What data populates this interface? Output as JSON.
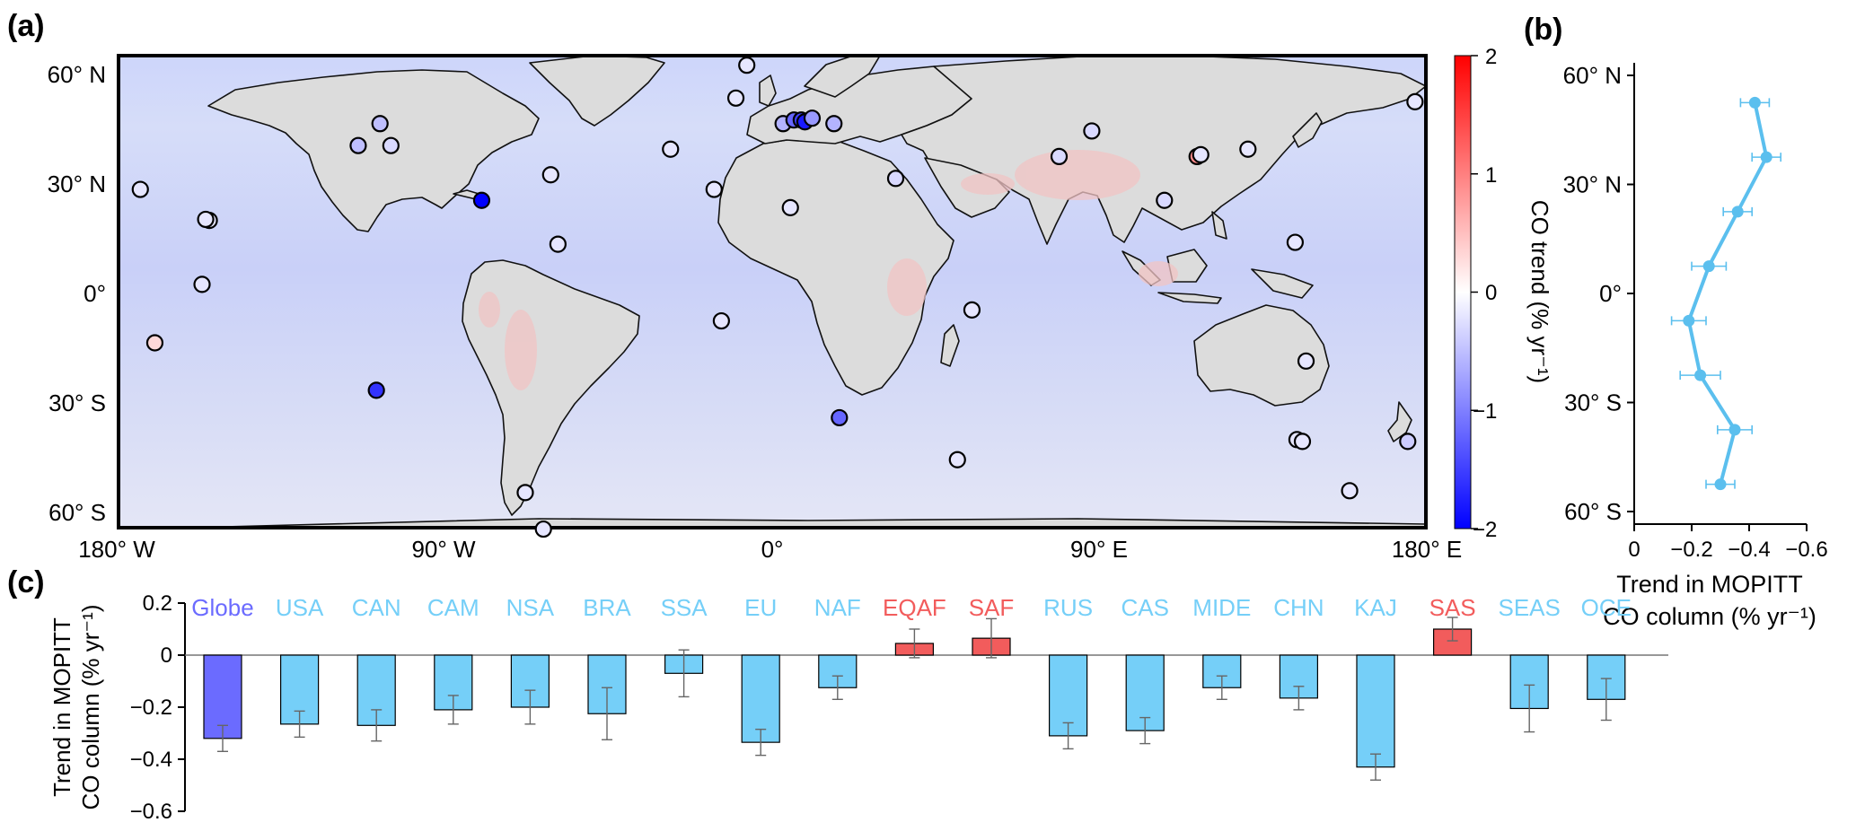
{
  "panels": {
    "a": "(a)",
    "b": "(b)",
    "c": "(c)"
  },
  "colors": {
    "blue": "#0000ff",
    "red": "#ff0000",
    "light_blue": "#75cff8",
    "globe_blue": "#6b6bff",
    "bar_red": "#f25c5c",
    "profile": "#5bbfee",
    "map_bg": "#d4dcf8",
    "land_gray": "#d8d8d8"
  },
  "chart_data": [
    {
      "type": "heatmap",
      "panel": "(a)",
      "x_ticks": [
        "180° W",
        "90° W",
        "0°",
        "90° E",
        "180° E"
      ],
      "y_ticks": [
        "60° N",
        "30° N",
        "0°",
        "30° S",
        "60° S"
      ],
      "colorbar": {
        "label": "CO trend (% yr⁻¹)",
        "ticks": [
          "2",
          "1",
          "0",
          "−1",
          "−2"
        ],
        "range": [
          -2,
          2
        ]
      },
      "stations": [
        {
          "lon": -174,
          "lat": 28,
          "trend": -0.2
        },
        {
          "lon": -155,
          "lat": 19.5,
          "trend": -0.2
        },
        {
          "lon": -156,
          "lat": 19.8,
          "trend": -0.2
        },
        {
          "lon": -157,
          "lat": 2,
          "trend": -0.2
        },
        {
          "lon": -170,
          "lat": -14,
          "trend": 0.3
        },
        {
          "lon": -109,
          "lat": -27,
          "trend": -1.6
        },
        {
          "lon": -114,
          "lat": 40,
          "trend": -0.5
        },
        {
          "lon": -108,
          "lat": 46,
          "trend": -0.5
        },
        {
          "lon": -105,
          "lat": 40,
          "trend": -0.3
        },
        {
          "lon": -80,
          "lat": 25,
          "trend": -2.0
        },
        {
          "lon": -61,
          "lat": 32,
          "trend": -0.2
        },
        {
          "lon": -59,
          "lat": 13,
          "trend": -0.2
        },
        {
          "lon": -68,
          "lat": -55,
          "trend": -0.2
        },
        {
          "lon": -63,
          "lat": -65,
          "trend": -0.2
        },
        {
          "lon": -28,
          "lat": 39,
          "trend": -0.2
        },
        {
          "lon": -16,
          "lat": 28,
          "trend": -0.2
        },
        {
          "lon": -10,
          "lat": 53,
          "trend": -0.2
        },
        {
          "lon": -7,
          "lat": 62,
          "trend": -0.2
        },
        {
          "lon": -14,
          "lat": -8,
          "trend": -0.2
        },
        {
          "lon": 5,
          "lat": 23,
          "trend": -0.2
        },
        {
          "lon": 3,
          "lat": 46,
          "trend": -0.6
        },
        {
          "lon": 6,
          "lat": 47,
          "trend": -1.2
        },
        {
          "lon": 8,
          "lat": 47,
          "trend": -1.5
        },
        {
          "lon": 9,
          "lat": 46.5,
          "trend": -1.8
        },
        {
          "lon": 11,
          "lat": 47.5,
          "trend": -0.8
        },
        {
          "lon": 17,
          "lat": 46,
          "trend": -0.6
        },
        {
          "lon": 18.5,
          "lat": -34.5,
          "trend": -1.2
        },
        {
          "lon": 34,
          "lat": 31,
          "trend": -0.3
        },
        {
          "lon": 55,
          "lat": -5,
          "trend": -0.2
        },
        {
          "lon": 51,
          "lat": -46,
          "trend": -0.2
        },
        {
          "lon": 79,
          "lat": 37,
          "trend": -0.3
        },
        {
          "lon": 88,
          "lat": 44,
          "trend": -0.3
        },
        {
          "lon": 108,
          "lat": 25,
          "trend": -0.3
        },
        {
          "lon": 117,
          "lat": 37,
          "trend": 0.9
        },
        {
          "lon": 118,
          "lat": 37.5,
          "trend": -0.2
        },
        {
          "lon": 131,
          "lat": 39,
          "trend": -0.2
        },
        {
          "lon": 144,
          "lat": 13.5,
          "trend": -0.2
        },
        {
          "lon": 147,
          "lat": -19,
          "trend": -0.2
        },
        {
          "lon": 144.5,
          "lat": -40.5,
          "trend": -0.2
        },
        {
          "lon": 146,
          "lat": -41,
          "trend": -0.2
        },
        {
          "lon": 175,
          "lat": -41,
          "trend": -0.4
        },
        {
          "lon": 159,
          "lat": -54.5,
          "trend": -0.2
        },
        {
          "lon": 177,
          "lat": 52,
          "trend": -0.2
        }
      ]
    },
    {
      "type": "line",
      "panel": "(b)",
      "xlabel": "Trend in MOPITT CO column (% yr⁻¹)",
      "xlabel_lines": [
        "Trend in MOPITT",
        "CO column (% yr⁻¹)"
      ],
      "xlim": [
        0,
        -0.6
      ],
      "ylim": [
        -66,
        66
      ],
      "x_ticks": [
        "0",
        "−0.2",
        "−0.4",
        "−0.6"
      ],
      "y_ticks": [
        "60° N",
        "30° N",
        "0°",
        "30° S",
        "60° S"
      ],
      "points": [
        {
          "lat": 52.5,
          "trend": -0.42,
          "err": 0.05
        },
        {
          "lat": 37.5,
          "trend": -0.46,
          "err": 0.05
        },
        {
          "lat": 22.5,
          "trend": -0.36,
          "err": 0.05
        },
        {
          "lat": 7.5,
          "trend": -0.26,
          "err": 0.06
        },
        {
          "lat": -7.5,
          "trend": -0.19,
          "err": 0.06
        },
        {
          "lat": -22.5,
          "trend": -0.23,
          "err": 0.07
        },
        {
          "lat": -37.5,
          "trend": -0.35,
          "err": 0.06
        },
        {
          "lat": -52.5,
          "trend": -0.3,
          "err": 0.05
        }
      ]
    },
    {
      "type": "bar",
      "panel": "(c)",
      "ylabel": "Trend in MOPITT CO column (% yr⁻¹)",
      "ylabel_lines": [
        "Trend in MOPITT",
        "CO column (% yr⁻¹)"
      ],
      "ylim": [
        -0.6,
        0.2
      ],
      "y_ticks": [
        "0.2",
        "0",
        "−0.2",
        "−0.4",
        "−0.6"
      ],
      "categories": [
        "Globe",
        "USA",
        "CAN",
        "CAM",
        "NSA",
        "BRA",
        "SSA",
        "EU",
        "NAF",
        "EQAF",
        "SAF",
        "RUS",
        "CAS",
        "MIDE",
        "CHN",
        "KAJ",
        "SAS",
        "SEAS",
        "OCE"
      ],
      "values": [
        -0.32,
        -0.265,
        -0.27,
        -0.21,
        -0.2,
        -0.225,
        -0.07,
        -0.335,
        -0.125,
        0.045,
        0.065,
        -0.31,
        -0.29,
        -0.125,
        -0.165,
        -0.43,
        0.1,
        -0.205,
        -0.17
      ],
      "errors": [
        0.05,
        0.05,
        0.06,
        0.055,
        0.065,
        0.1,
        0.09,
        0.05,
        0.045,
        0.055,
        0.075,
        0.05,
        0.05,
        0.045,
        0.045,
        0.05,
        0.045,
        0.09,
        0.08
      ],
      "bar_colors": [
        "#6b6bff",
        "#75cff8",
        "#75cff8",
        "#75cff8",
        "#75cff8",
        "#75cff8",
        "#75cff8",
        "#75cff8",
        "#75cff8",
        "#f25c5c",
        "#f25c5c",
        "#75cff8",
        "#75cff8",
        "#75cff8",
        "#75cff8",
        "#75cff8",
        "#f25c5c",
        "#75cff8",
        "#75cff8"
      ],
      "label_colors": [
        "#6b6bff",
        "#75cff8",
        "#75cff8",
        "#75cff8",
        "#75cff8",
        "#75cff8",
        "#75cff8",
        "#75cff8",
        "#75cff8",
        "#f25c5c",
        "#f25c5c",
        "#75cff8",
        "#75cff8",
        "#75cff8",
        "#75cff8",
        "#75cff8",
        "#f25c5c",
        "#75cff8",
        "#75cff8"
      ]
    }
  ]
}
